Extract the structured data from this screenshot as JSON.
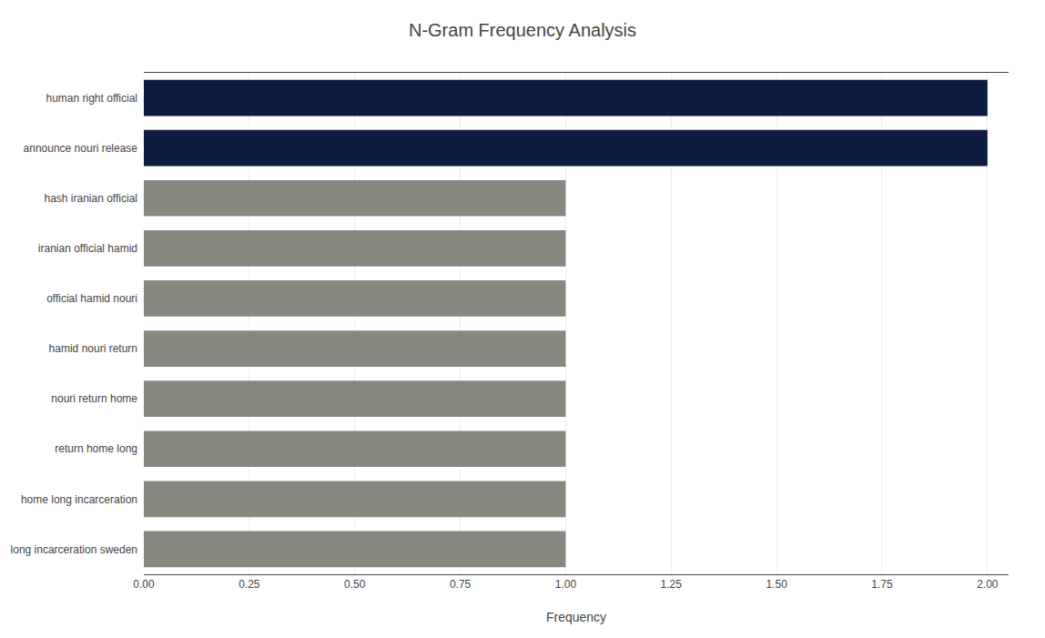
{
  "chart_data": {
    "type": "bar",
    "orientation": "horizontal",
    "title": "N-Gram Frequency Analysis",
    "xlabel": "Frequency",
    "categories": [
      "long incarceration sweden",
      "home long incarceration",
      "return home long",
      "nouri return home",
      "hamid nouri return",
      "official hamid nouri",
      "iranian official hamid",
      "hash iranian official",
      "announce nouri release",
      "human right official"
    ],
    "values": [
      1,
      1,
      1,
      1,
      1,
      1,
      1,
      1,
      2,
      2
    ],
    "colors": [
      "#888880",
      "#888880",
      "#888880",
      "#888880",
      "#888880",
      "#888880",
      "#888880",
      "#888880",
      "#0d1b3e",
      "#0d1b3e"
    ],
    "xlim": [
      0,
      2.05
    ],
    "xticks": [
      {
        "value": 0,
        "label": "0.00"
      },
      {
        "value": 0.25,
        "label": "0.25"
      },
      {
        "value": 0.5,
        "label": "0.50"
      },
      {
        "value": 0.75,
        "label": "0.75"
      },
      {
        "value": 1,
        "label": "1.00"
      },
      {
        "value": 1.25,
        "label": "1.25"
      },
      {
        "value": 1.5,
        "label": "1.50"
      },
      {
        "value": 1.75,
        "label": "1.75"
      },
      {
        "value": 2,
        "label": "2.00"
      }
    ],
    "grid": true
  }
}
